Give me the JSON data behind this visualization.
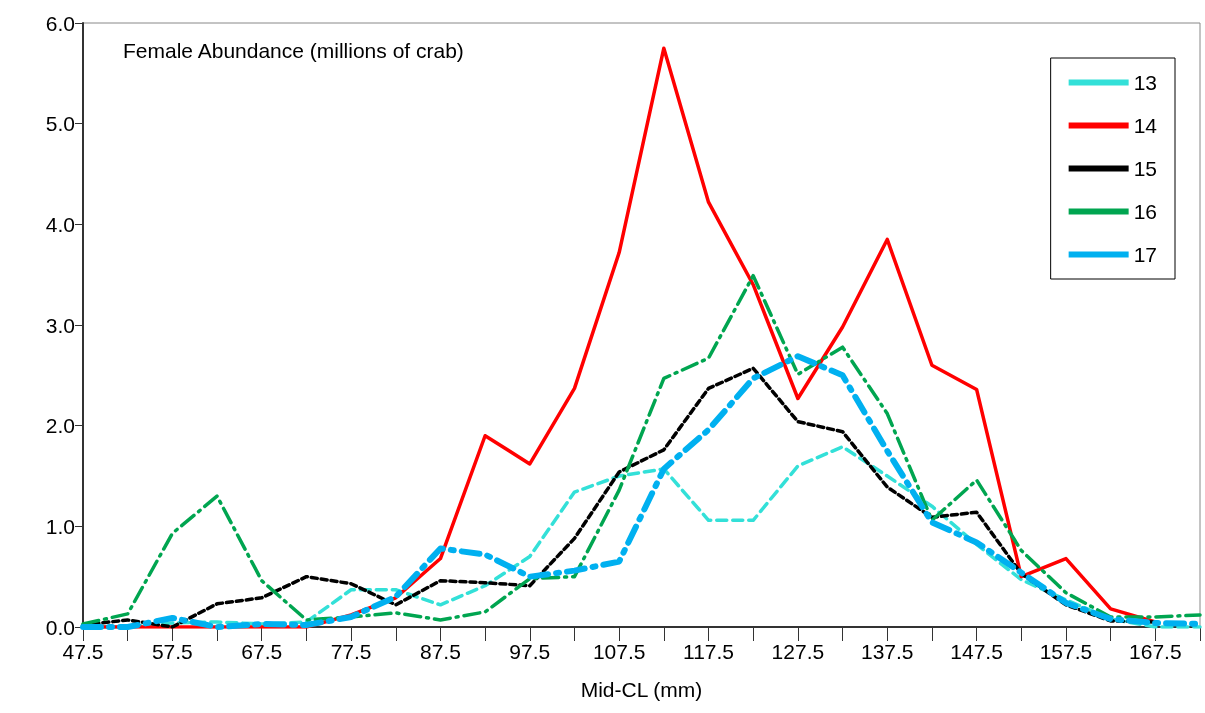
{
  "chart_data": {
    "type": "line",
    "title": "Female Abundance (millions of crab)",
    "xlabel": "Mid-CL (mm)",
    "categories": [
      "47.5",
      null,
      "57.5",
      null,
      "67.5",
      null,
      "77.5",
      null,
      "87.5",
      null,
      "97.5",
      null,
      "107.5",
      null,
      "117.5",
      null,
      "127.5",
      null,
      "137.5",
      null,
      "147.5",
      null,
      "157.5",
      null,
      "167.5",
      null
    ],
    "series": [
      {
        "name": "13",
        "color": "#33e0d8",
        "line_style": "dashed",
        "values": [
          0.0,
          0.0,
          0.04,
          0.05,
          0.03,
          0.05,
          0.37,
          0.37,
          0.22,
          0.41,
          0.7,
          1.34,
          1.5,
          1.57,
          1.06,
          1.06,
          1.6,
          1.79,
          1.5,
          1.2,
          0.82,
          0.47,
          0.27,
          0.08,
          0.0,
          0.0
        ]
      },
      {
        "name": "14",
        "color": "#ff0000",
        "line_style": "solid",
        "values": [
          0.0,
          0.0,
          0.0,
          0.0,
          0.0,
          0.0,
          0.12,
          0.29,
          0.68,
          1.9,
          1.62,
          2.37,
          3.72,
          5.75,
          4.22,
          3.4,
          2.27,
          2.98,
          3.85,
          2.6,
          2.36,
          0.5,
          0.68,
          0.18,
          0.05,
          null
        ]
      },
      {
        "name": "15",
        "color": "#000000",
        "line_style": "dashed",
        "values": [
          0.02,
          0.07,
          0.0,
          0.23,
          0.29,
          0.5,
          0.43,
          0.22,
          0.46,
          0.44,
          0.41,
          0.88,
          1.54,
          1.76,
          2.37,
          2.57,
          2.04,
          1.94,
          1.39,
          1.09,
          1.14,
          0.53,
          0.22,
          0.06,
          0.05,
          null
        ]
      },
      {
        "name": "16",
        "color": "#00a550",
        "line_style": "dashed",
        "values": [
          0.03,
          0.13,
          0.93,
          1.3,
          0.46,
          0.07,
          0.1,
          0.14,
          0.07,
          0.15,
          0.48,
          0.5,
          1.36,
          2.47,
          2.67,
          3.49,
          2.51,
          2.78,
          2.12,
          1.06,
          1.46,
          0.76,
          0.34,
          0.1,
          0.1,
          0.12
        ]
      },
      {
        "name": "17",
        "color": "#00b0f0",
        "line_style": "dashed",
        "values": [
          0.0,
          0.0,
          0.09,
          0.0,
          0.03,
          0.02,
          0.1,
          0.3,
          0.78,
          0.72,
          0.5,
          0.56,
          0.65,
          1.57,
          1.96,
          2.47,
          2.69,
          2.5,
          1.75,
          1.04,
          0.84,
          0.54,
          0.24,
          0.08,
          0.04,
          0.03
        ]
      }
    ],
    "ylim": [
      0,
      6
    ],
    "yticks": [
      {
        "value": 0,
        "label": "0.0"
      },
      {
        "value": 1,
        "label": "1.0"
      },
      {
        "value": 2,
        "label": "2.0"
      },
      {
        "value": 3,
        "label": "3.0"
      },
      {
        "value": 4,
        "label": "4.0"
      },
      {
        "value": 5,
        "label": "5.0"
      },
      {
        "value": 6,
        "label": "6.0"
      }
    ],
    "grid": false,
    "legend": "top right",
    "marker": "none"
  }
}
